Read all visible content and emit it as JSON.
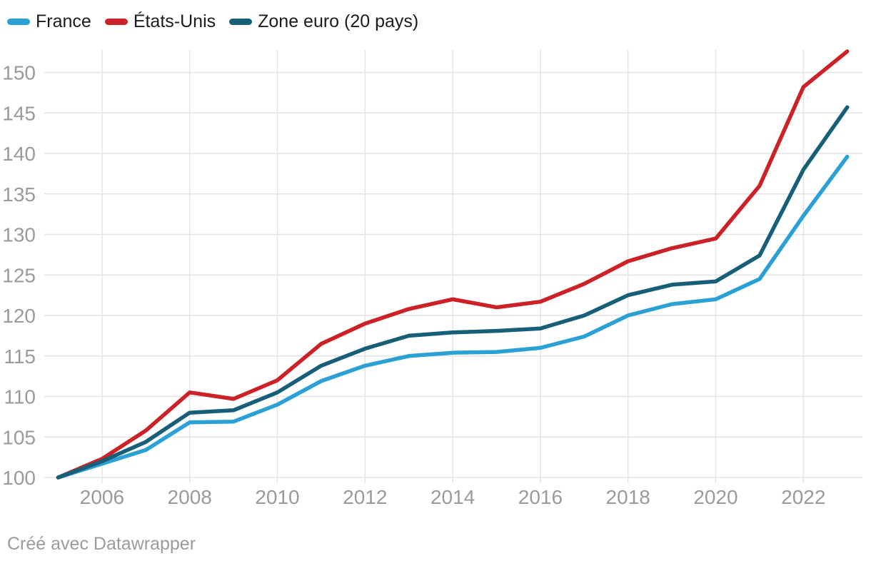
{
  "legend": {
    "items": [
      {
        "label": "France",
        "color": "#2aa0d4"
      },
      {
        "label": "États-Unis",
        "color": "#cb2127"
      },
      {
        "label": "Zone euro (20 pays)",
        "color": "#175f78"
      }
    ]
  },
  "footer": {
    "attribution": "Créé avec Datawrapper"
  },
  "chart_data": {
    "type": "line",
    "x": [
      2005,
      2006,
      2007,
      2008,
      2009,
      2010,
      2011,
      2012,
      2013,
      2014,
      2015,
      2016,
      2017,
      2018,
      2019,
      2020,
      2021,
      2022,
      2023
    ],
    "series": [
      {
        "name": "France",
        "color": "#2aa0d4",
        "values": [
          100,
          101.7,
          103.4,
          106.8,
          106.9,
          109.0,
          111.9,
          113.8,
          115.0,
          115.4,
          115.5,
          116.0,
          117.4,
          120.0,
          121.4,
          122.0,
          124.5,
          132.3,
          139.6
        ]
      },
      {
        "name": "États-Unis",
        "color": "#cb2127",
        "values": [
          100,
          102.3,
          105.8,
          110.5,
          109.7,
          112.0,
          116.5,
          119.0,
          120.8,
          122.0,
          121.0,
          121.7,
          123.9,
          126.7,
          128.3,
          129.5,
          136.0,
          148.2,
          152.6
        ]
      },
      {
        "name": "Zone euro (20 pays)",
        "color": "#175f78",
        "values": [
          100,
          102.0,
          104.4,
          108.0,
          108.3,
          110.5,
          113.8,
          115.9,
          117.5,
          117.9,
          118.1,
          118.4,
          120.0,
          122.5,
          123.8,
          124.2,
          127.4,
          138.0,
          145.7
        ]
      }
    ],
    "y_ticks": [
      100,
      105,
      110,
      115,
      120,
      125,
      130,
      135,
      140,
      145,
      150
    ],
    "x_ticks": [
      2006,
      2008,
      2010,
      2012,
      2014,
      2016,
      2018,
      2020,
      2022
    ],
    "xlim": [
      2005,
      2023
    ],
    "ylim": [
      100,
      153
    ],
    "grid": true,
    "legend_position": "top-left"
  }
}
